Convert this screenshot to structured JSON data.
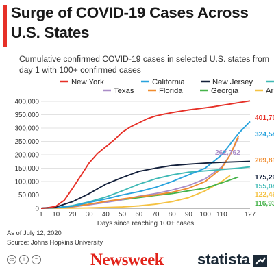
{
  "header": {
    "title": "Surge of COVID-19 Cases Across U.S. States",
    "subtitle": "Cumulative confirmed COVID-19 cases in selected U.S. states from day 1 with 100+ confirmed cases",
    "accent_color": "#e63027"
  },
  "chart_data": {
    "type": "line",
    "xlabel": "Days since reaching 100+ cases",
    "ylabel": "",
    "xlim": [
      1,
      127
    ],
    "ylim": [
      0,
      400000
    ],
    "x_ticks": [
      1,
      10,
      20,
      30,
      40,
      50,
      60,
      70,
      80,
      90,
      100,
      110,
      127
    ],
    "y_ticks": [
      0,
      50000,
      100000,
      150000,
      200000,
      250000,
      300000,
      350000,
      400000
    ],
    "y_tick_labels": [
      "0",
      "50,000",
      "100,000",
      "150,000",
      "200,000",
      "250,000",
      "300,000",
      "350,000",
      "400,000"
    ],
    "grid": "horizontal",
    "legend_placement": "top",
    "series": [
      {
        "name": "New York",
        "color": "#e63027",
        "end_label": "401,706",
        "points": [
          [
            1,
            100
          ],
          [
            5,
            1500
          ],
          [
            10,
            8000
          ],
          [
            15,
            30000
          ],
          [
            20,
            75000
          ],
          [
            25,
            122000
          ],
          [
            30,
            170000
          ],
          [
            35,
            205000
          ],
          [
            40,
            230000
          ],
          [
            45,
            255000
          ],
          [
            50,
            285000
          ],
          [
            55,
            305000
          ],
          [
            60,
            320000
          ],
          [
            65,
            335000
          ],
          [
            70,
            345000
          ],
          [
            75,
            352000
          ],
          [
            80,
            358000
          ],
          [
            85,
            363000
          ],
          [
            90,
            368000
          ],
          [
            95,
            372000
          ],
          [
            100,
            376000
          ],
          [
            105,
            380000
          ],
          [
            110,
            385000
          ],
          [
            115,
            390000
          ],
          [
            120,
            395000
          ],
          [
            127,
            401706
          ]
        ]
      },
      {
        "name": "California",
        "color": "#29a3dd",
        "end_label": "324,543",
        "points": [
          [
            1,
            100
          ],
          [
            10,
            2000
          ],
          [
            20,
            8000
          ],
          [
            30,
            22000
          ],
          [
            40,
            35000
          ],
          [
            50,
            50000
          ],
          [
            60,
            62000
          ],
          [
            70,
            78000
          ],
          [
            80,
            100000
          ],
          [
            90,
            125000
          ],
          [
            100,
            150000
          ],
          [
            110,
            200000
          ],
          [
            115,
            240000
          ],
          [
            120,
            280000
          ],
          [
            127,
            324543
          ]
        ]
      },
      {
        "name": "New Jersey",
        "color": "#13203b",
        "end_label": "175,298",
        "points": [
          [
            1,
            100
          ],
          [
            10,
            5000
          ],
          [
            20,
            25000
          ],
          [
            30,
            55000
          ],
          [
            40,
            90000
          ],
          [
            50,
            115000
          ],
          [
            60,
            138000
          ],
          [
            70,
            150000
          ],
          [
            80,
            160000
          ],
          [
            90,
            165000
          ],
          [
            100,
            169000
          ],
          [
            110,
            172000
          ],
          [
            127,
            175298
          ]
        ]
      },
      {
        "name": "Illinois",
        "color": "#3fb9b5",
        "end_label": "155,048",
        "points": [
          [
            1,
            100
          ],
          [
            10,
            2000
          ],
          [
            20,
            10000
          ],
          [
            30,
            24000
          ],
          [
            40,
            42000
          ],
          [
            50,
            65000
          ],
          [
            60,
            90000
          ],
          [
            70,
            110000
          ],
          [
            80,
            125000
          ],
          [
            90,
            135000
          ],
          [
            100,
            140000
          ],
          [
            110,
            145000
          ],
          [
            120,
            150000
          ],
          [
            127,
            155048
          ]
        ]
      },
      {
        "name": "Texas",
        "color": "#a98cc7",
        "end_label": "262,762",
        "points": [
          [
            1,
            100
          ],
          [
            10,
            1000
          ],
          [
            20,
            5000
          ],
          [
            30,
            13000
          ],
          [
            40,
            22000
          ],
          [
            50,
            32000
          ],
          [
            60,
            45000
          ],
          [
            70,
            55000
          ],
          [
            80,
            68000
          ],
          [
            90,
            85000
          ],
          [
            100,
            110000
          ],
          [
            110,
            155000
          ],
          [
            115,
            200000
          ],
          [
            120,
            262762
          ]
        ]
      },
      {
        "name": "Florida",
        "color": "#f08c2e",
        "end_label": "269,811",
        "points": [
          [
            1,
            100
          ],
          [
            10,
            1000
          ],
          [
            20,
            6000
          ],
          [
            30,
            15000
          ],
          [
            40,
            26000
          ],
          [
            50,
            35000
          ],
          [
            60,
            43000
          ],
          [
            70,
            50000
          ],
          [
            80,
            60000
          ],
          [
            90,
            75000
          ],
          [
            100,
            100000
          ],
          [
            110,
            150000
          ],
          [
            115,
            200000
          ],
          [
            120,
            269811
          ]
        ]
      },
      {
        "name": "Georgia",
        "color": "#46b34a",
        "end_label": "116,935",
        "points": [
          [
            1,
            100
          ],
          [
            10,
            1500
          ],
          [
            20,
            8000
          ],
          [
            30,
            15000
          ],
          [
            40,
            25000
          ],
          [
            50,
            32000
          ],
          [
            60,
            40000
          ],
          [
            70,
            48000
          ],
          [
            80,
            55000
          ],
          [
            90,
            65000
          ],
          [
            100,
            75000
          ],
          [
            110,
            95000
          ],
          [
            120,
            116935
          ]
        ]
      },
      {
        "name": "Arizona",
        "color": "#f5c242",
        "end_label": "122,467",
        "points": [
          [
            1,
            100
          ],
          [
            10,
            200
          ],
          [
            20,
            500
          ],
          [
            30,
            1200
          ],
          [
            40,
            3000
          ],
          [
            50,
            5000
          ],
          [
            60,
            9000
          ],
          [
            70,
            15000
          ],
          [
            80,
            25000
          ],
          [
            90,
            40000
          ],
          [
            100,
            65000
          ],
          [
            110,
            100000
          ],
          [
            115,
            122467
          ]
        ]
      }
    ]
  },
  "source": {
    "date_note": "As of July 12, 2020",
    "source_note": "Source: Johns Hopkins University"
  },
  "footer": {
    "cc_icons": [
      "cc",
      "i",
      "="
    ],
    "newsweek_logo": "Newsweek",
    "statista_logo": "statista",
    "statista_color": "#1d2b38",
    "newsweek_color": "#e2231a"
  }
}
